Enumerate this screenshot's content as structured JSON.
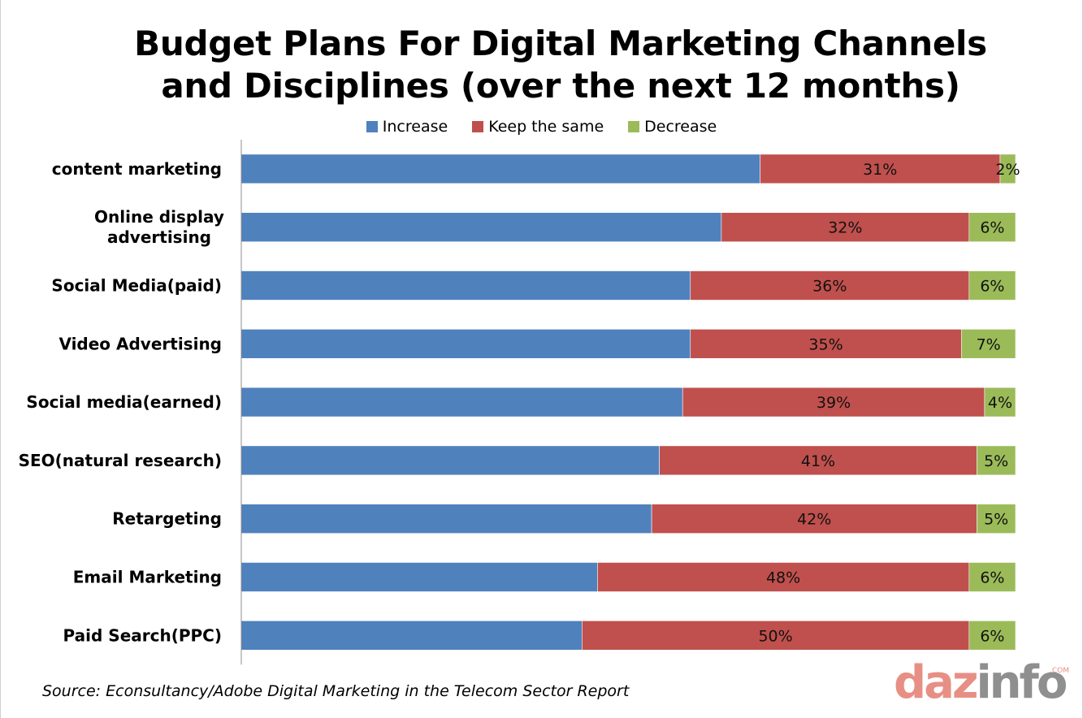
{
  "chart_data": {
    "type": "bar",
    "orientation": "horizontal",
    "stacked": true,
    "title": "Budget Plans For Digital Marketing Channels and Disciplines (over the next 12 months)",
    "title_lines": [
      "Budget Plans For Digital Marketing Channels",
      "and Disciplines (over the next 12 months)"
    ],
    "categories": [
      "content marketing",
      "Online display advertising",
      "Social Media(paid)",
      "Video Advertising",
      "Social media(earned)",
      "SEO(natural research)",
      "Retargeting",
      "Email Marketing",
      "Paid Search(PPC)"
    ],
    "category_lines": [
      [
        "content marketing"
      ],
      [
        "Online display",
        "advertising"
      ],
      [
        "Social Media(paid)"
      ],
      [
        "Video Advertising"
      ],
      [
        "Social media(earned)"
      ],
      [
        "SEO(natural research)"
      ],
      [
        "Retargeting"
      ],
      [
        "Email Marketing"
      ],
      [
        "Paid Search(PPC)"
      ]
    ],
    "series": [
      {
        "name": "Increase",
        "color": "#4f81bd",
        "values": [
          67,
          62,
          58,
          58,
          57,
          54,
          53,
          46,
          44
        ],
        "show_labels": false
      },
      {
        "name": "Keep the same",
        "color": "#c0504d",
        "values": [
          31,
          32,
          36,
          35,
          39,
          41,
          42,
          48,
          50
        ],
        "show_labels": true
      },
      {
        "name": "Decrease",
        "color": "#9bbb59",
        "values": [
          2,
          6,
          6,
          7,
          4,
          5,
          5,
          6,
          6
        ],
        "show_labels": true
      }
    ],
    "value_suffix": "%",
    "xlim": [
      0,
      100
    ],
    "grid": false,
    "legend": "top-center"
  },
  "source": "Source: Econsultancy/Adobe Digital Marketing in the Telecom Sector Report",
  "logo": {
    "part_a": "daz",
    "part_b": "info",
    "com": ".COM"
  }
}
